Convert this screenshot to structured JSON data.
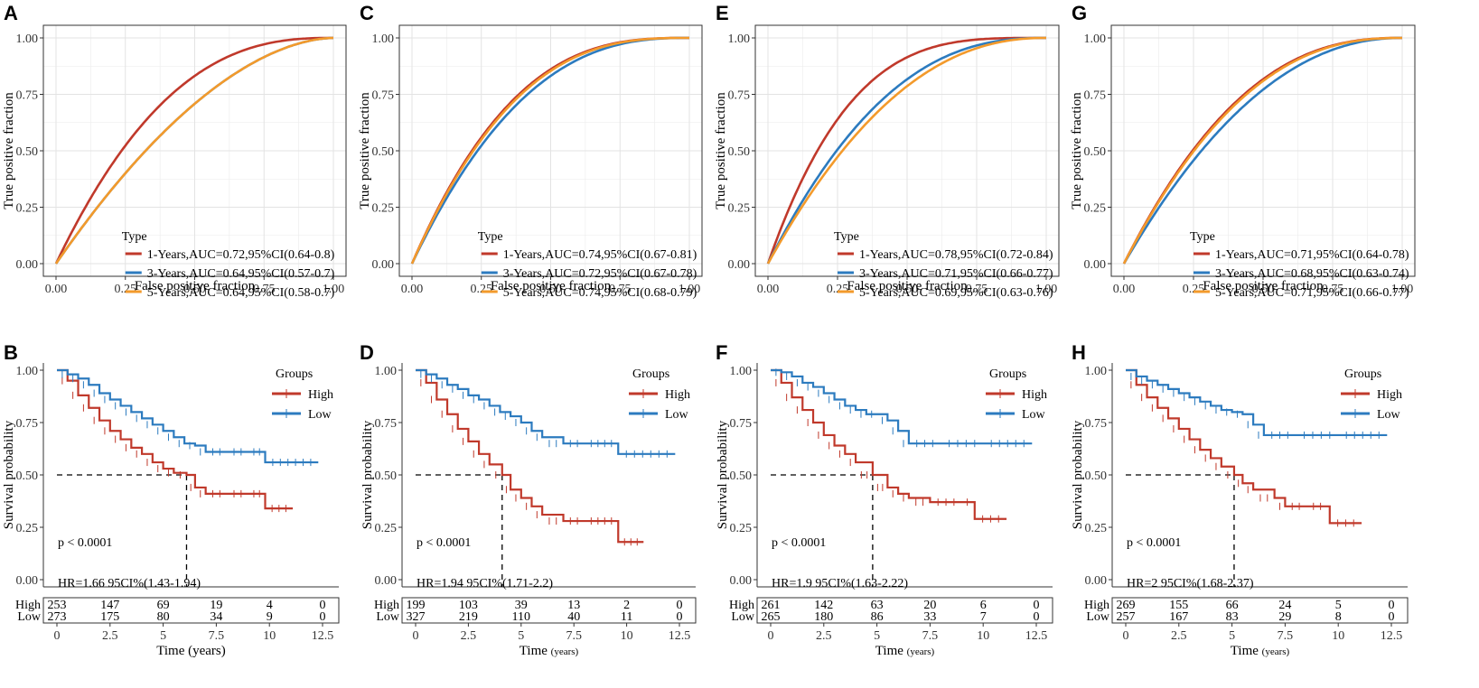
{
  "colors": {
    "red": "#c0392b",
    "blue": "#2c7bbf",
    "orange": "#f39a2b",
    "grid": "#ebebeb",
    "panel_border": "#333333"
  },
  "roc_axis": {
    "xlabel": "False positive fraction",
    "ylabel": "True positive fraction",
    "ticks": [
      "0.00",
      "0.25",
      "0.50",
      "0.75",
      "1.00"
    ],
    "legend_title": "Type"
  },
  "km_axis": {
    "ylabel": "Survival probability",
    "y_ticks": [
      "0.00",
      "0.25",
      "0.50",
      "0.75",
      "1.00"
    ],
    "x_ticks": [
      "0",
      "2.5",
      "5",
      "7.5",
      "10",
      "12.5"
    ],
    "legend_title": "Groups",
    "risk_groups": [
      "High",
      "Low"
    ]
  },
  "chart_data": [
    {
      "panel": "A",
      "type": "line",
      "xlabel": "False positive fraction",
      "ylabel": "True positive fraction",
      "xlim": [
        0,
        1
      ],
      "ylim": [
        0,
        1
      ],
      "series": [
        {
          "name": "1-Years,AUC=0.72,95%CI(0.64-0.8)",
          "auc": 0.72,
          "color": "red"
        },
        {
          "name": "3-Years,AUC=0.64,95%CI(0.57-0.7)",
          "auc": 0.64,
          "color": "blue"
        },
        {
          "name": "5-Years,AUC=0.64,95%CI(0.58-0.7)",
          "auc": 0.64,
          "color": "orange"
        }
      ]
    },
    {
      "panel": "C",
      "type": "line",
      "xlabel": "False positive fraction",
      "ylabel": "True positive fraction",
      "xlim": [
        0,
        1
      ],
      "ylim": [
        0,
        1
      ],
      "series": [
        {
          "name": "1-Years,AUC=0.74,95%CI(0.67-0.81)",
          "auc": 0.74,
          "color": "red"
        },
        {
          "name": "3-Years,AUC=0.72,95%CI(0.67-0.78)",
          "auc": 0.72,
          "color": "blue"
        },
        {
          "name": "5-Years,AUC=0.74,95%CI(0.68-0.79)",
          "auc": 0.735,
          "color": "orange"
        }
      ]
    },
    {
      "panel": "E",
      "type": "line",
      "xlabel": "False positive fraction",
      "ylabel": "True positive fraction",
      "xlim": [
        0,
        1
      ],
      "ylim": [
        0,
        1
      ],
      "series": [
        {
          "name": "1-Years,AUC=0.78,95%CI(0.72-0.84)",
          "auc": 0.78,
          "color": "red"
        },
        {
          "name": "3-Years,AUC=0.71,95%CI(0.66-0.77)",
          "auc": 0.71,
          "color": "blue"
        },
        {
          "name": "5-Years,AUC=0.69,95%CI(0.63-0.76)",
          "auc": 0.69,
          "color": "orange"
        }
      ]
    },
    {
      "panel": "G",
      "type": "line",
      "xlabel": "False positive fraction",
      "ylabel": "True positive fraction",
      "xlim": [
        0,
        1
      ],
      "ylim": [
        0,
        1
      ],
      "series": [
        {
          "name": "1-Years,AUC=0.71,95%CI(0.64-0.78)",
          "auc": 0.71,
          "color": "red"
        },
        {
          "name": "3-Years,AUC=0.68,95%CI(0.63-0.74)",
          "auc": 0.68,
          "color": "blue"
        },
        {
          "name": "5-Years,AUC=0.71,95%CI(0.66-0.77)",
          "auc": 0.705,
          "color": "orange"
        }
      ]
    },
    {
      "panel": "B",
      "type": "line",
      "xlabel": "Time (years)",
      "ylabel": "Survival probability",
      "xlim": [
        0,
        12.5
      ],
      "ylim": [
        0,
        1
      ],
      "p_value": "p < 0.0001",
      "hr": "HR=1.66 95CI%(1.43-1.94)",
      "median_high": 6.1,
      "series": [
        {
          "name": "High",
          "color": "red",
          "points": [
            [
              0,
              1
            ],
            [
              0.5,
              0.95
            ],
            [
              1,
              0.88
            ],
            [
              1.5,
              0.82
            ],
            [
              2,
              0.76
            ],
            [
              2.5,
              0.71
            ],
            [
              3,
              0.67
            ],
            [
              3.5,
              0.63
            ],
            [
              4,
              0.6
            ],
            [
              4.5,
              0.56
            ],
            [
              5,
              0.53
            ],
            [
              5.5,
              0.51
            ],
            [
              6.1,
              0.5
            ],
            [
              6.5,
              0.44
            ],
            [
              7,
              0.41
            ],
            [
              8,
              0.41
            ],
            [
              9,
              0.41
            ],
            [
              9.8,
              0.41
            ],
            [
              9.8,
              0.34
            ],
            [
              11.1,
              0.34
            ]
          ]
        },
        {
          "name": "Low",
          "color": "blue",
          "points": [
            [
              0,
              1
            ],
            [
              0.5,
              0.98
            ],
            [
              1,
              0.96
            ],
            [
              1.5,
              0.93
            ],
            [
              2,
              0.89
            ],
            [
              2.5,
              0.86
            ],
            [
              3,
              0.83
            ],
            [
              3.5,
              0.8
            ],
            [
              4,
              0.77
            ],
            [
              4.5,
              0.74
            ],
            [
              5,
              0.71
            ],
            [
              5.5,
              0.68
            ],
            [
              6,
              0.65
            ],
            [
              6.5,
              0.64
            ],
            [
              7,
              0.61
            ],
            [
              8,
              0.61
            ],
            [
              9,
              0.61
            ],
            [
              9.8,
              0.61
            ],
            [
              9.8,
              0.56
            ],
            [
              12.3,
              0.56
            ]
          ]
        }
      ],
      "risk_table": {
        "high": [
          "253",
          "147",
          "69",
          "19",
          "4",
          "0"
        ],
        "low": [
          "273",
          "175",
          "80",
          "34",
          "9",
          "0"
        ]
      }
    },
    {
      "panel": "D",
      "type": "line",
      "xlabel": "Time (years)",
      "xlabel_unit": "Time",
      "xlabel_small": "(years)",
      "ylabel": "Survival probability",
      "xlim": [
        0,
        12.5
      ],
      "ylim": [
        0,
        1
      ],
      "p_value": "p < 0.0001",
      "hr": "HR=1.94 95CI%(1.71-2.2)",
      "median_high": 4.1,
      "series": [
        {
          "name": "High",
          "color": "red",
          "points": [
            [
              0,
              1
            ],
            [
              0.5,
              0.94
            ],
            [
              1,
              0.86
            ],
            [
              1.5,
              0.79
            ],
            [
              2,
              0.72
            ],
            [
              2.5,
              0.66
            ],
            [
              3,
              0.6
            ],
            [
              3.5,
              0.55
            ],
            [
              4.1,
              0.5
            ],
            [
              4.5,
              0.43
            ],
            [
              5,
              0.39
            ],
            [
              5.5,
              0.35
            ],
            [
              6,
              0.31
            ],
            [
              7,
              0.28
            ],
            [
              8,
              0.28
            ],
            [
              9.6,
              0.28
            ],
            [
              9.6,
              0.18
            ],
            [
              10.8,
              0.18
            ]
          ]
        },
        {
          "name": "Low",
          "color": "blue",
          "points": [
            [
              0,
              1
            ],
            [
              0.5,
              0.98
            ],
            [
              1,
              0.96
            ],
            [
              1.5,
              0.93
            ],
            [
              2,
              0.91
            ],
            [
              2.5,
              0.88
            ],
            [
              3,
              0.86
            ],
            [
              3.5,
              0.83
            ],
            [
              4,
              0.8
            ],
            [
              4.5,
              0.78
            ],
            [
              5,
              0.75
            ],
            [
              5.5,
              0.71
            ],
            [
              6,
              0.68
            ],
            [
              7,
              0.65
            ],
            [
              8,
              0.65
            ],
            [
              9.6,
              0.65
            ],
            [
              9.6,
              0.6
            ],
            [
              12.3,
              0.6
            ]
          ]
        }
      ],
      "risk_table": {
        "high": [
          "199",
          "103",
          "39",
          "13",
          "2",
          "0"
        ],
        "low": [
          "327",
          "219",
          "110",
          "40",
          "11",
          "0"
        ]
      }
    },
    {
      "panel": "F",
      "type": "line",
      "xlabel": "Time (years)",
      "xlabel_unit": "Time",
      "xlabel_small": "(years)",
      "ylabel": "Survival probability",
      "xlim": [
        0,
        12.5
      ],
      "ylim": [
        0,
        1
      ],
      "p_value": "p < 0.0001",
      "hr": "HR=1.9 95CI%(1.63-2.22)",
      "median_high": 4.8,
      "series": [
        {
          "name": "High",
          "color": "red",
          "points": [
            [
              0,
              1
            ],
            [
              0.5,
              0.94
            ],
            [
              1,
              0.87
            ],
            [
              1.5,
              0.81
            ],
            [
              2,
              0.75
            ],
            [
              2.5,
              0.69
            ],
            [
              3,
              0.64
            ],
            [
              3.5,
              0.6
            ],
            [
              4,
              0.56
            ],
            [
              4.8,
              0.5
            ],
            [
              5.5,
              0.44
            ],
            [
              6,
              0.41
            ],
            [
              6.5,
              0.39
            ],
            [
              7.5,
              0.37
            ],
            [
              9,
              0.37
            ],
            [
              9.5,
              0.37
            ],
            [
              9.6,
              0.29
            ],
            [
              11.1,
              0.29
            ]
          ]
        },
        {
          "name": "Low",
          "color": "blue",
          "points": [
            [
              0,
              1
            ],
            [
              0.5,
              0.99
            ],
            [
              1,
              0.97
            ],
            [
              1.5,
              0.94
            ],
            [
              2,
              0.92
            ],
            [
              2.5,
              0.89
            ],
            [
              3,
              0.86
            ],
            [
              3.5,
              0.83
            ],
            [
              4,
              0.81
            ],
            [
              4.5,
              0.79
            ],
            [
              5,
              0.79
            ],
            [
              5.5,
              0.76
            ],
            [
              6,
              0.71
            ],
            [
              6.5,
              0.65
            ],
            [
              8,
              0.65
            ],
            [
              10,
              0.65
            ],
            [
              12.3,
              0.65
            ]
          ]
        }
      ],
      "risk_table": {
        "high": [
          "261",
          "142",
          "63",
          "20",
          "6",
          "0"
        ],
        "low": [
          "265",
          "180",
          "86",
          "33",
          "7",
          "0"
        ]
      }
    },
    {
      "panel": "H",
      "type": "line",
      "xlabel": "Time (years)",
      "xlabel_unit": "Time",
      "xlabel_small": "(years)",
      "ylabel": "Survival probability",
      "xlim": [
        0,
        12.5
      ],
      "ylim": [
        0,
        1
      ],
      "p_value": "p < 0.0001",
      "hr": "HR=2 95CI%(1.68-2.37)",
      "median_high": 5.1,
      "series": [
        {
          "name": "High",
          "color": "red",
          "points": [
            [
              0,
              1
            ],
            [
              0.5,
              0.93
            ],
            [
              1,
              0.87
            ],
            [
              1.5,
              0.82
            ],
            [
              2,
              0.77
            ],
            [
              2.5,
              0.72
            ],
            [
              3,
              0.67
            ],
            [
              3.5,
              0.62
            ],
            [
              4,
              0.58
            ],
            [
              4.5,
              0.54
            ],
            [
              5.1,
              0.5
            ],
            [
              5.5,
              0.46
            ],
            [
              6,
              0.43
            ],
            [
              7,
              0.39
            ],
            [
              7.5,
              0.35
            ],
            [
              8.5,
              0.35
            ],
            [
              9.5,
              0.35
            ],
            [
              9.6,
              0.27
            ],
            [
              11.1,
              0.27
            ]
          ]
        },
        {
          "name": "Low",
          "color": "blue",
          "points": [
            [
              0,
              1
            ],
            [
              0.5,
              0.97
            ],
            [
              1,
              0.95
            ],
            [
              1.5,
              0.93
            ],
            [
              2,
              0.91
            ],
            [
              2.5,
              0.89
            ],
            [
              3,
              0.87
            ],
            [
              3.5,
              0.85
            ],
            [
              4,
              0.83
            ],
            [
              4.5,
              0.81
            ],
            [
              5,
              0.8
            ],
            [
              5.5,
              0.79
            ],
            [
              6,
              0.74
            ],
            [
              6.5,
              0.69
            ],
            [
              8,
              0.69
            ],
            [
              10,
              0.69
            ],
            [
              12.3,
              0.69
            ]
          ]
        }
      ],
      "risk_table": {
        "high": [
          "269",
          "155",
          "66",
          "24",
          "5",
          "0"
        ],
        "low": [
          "257",
          "167",
          "83",
          "29",
          "8",
          "0"
        ]
      }
    }
  ]
}
